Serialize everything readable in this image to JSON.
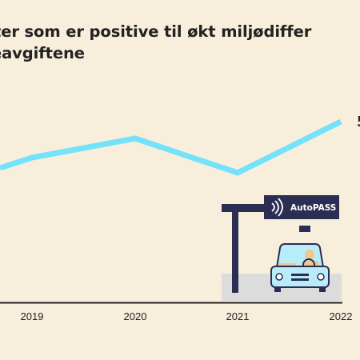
{
  "chart_data": {
    "type": "line",
    "title_lines": [
      "ifter som er positive til økt miljødiffer",
      "eavgiftene"
    ],
    "x": [
      "2019",
      "2020",
      "2021",
      "2022"
    ],
    "series": [
      {
        "values": [
          null,
          null,
          null,
          null
        ]
      }
    ],
    "grid": false,
    "legend": "none",
    "colors": {
      "line": "#73e2fb",
      "axis": "#222222",
      "background": "#f8eedc"
    }
  },
  "illustration": {
    "sign_text": "AutoPASS",
    "colors": {
      "gantry": "#2b2d52",
      "car": "#b9ecf9",
      "car_outline": "#2b2d52",
      "ground": "#dcdcdc",
      "driver_skin": "#f3c78a"
    }
  }
}
